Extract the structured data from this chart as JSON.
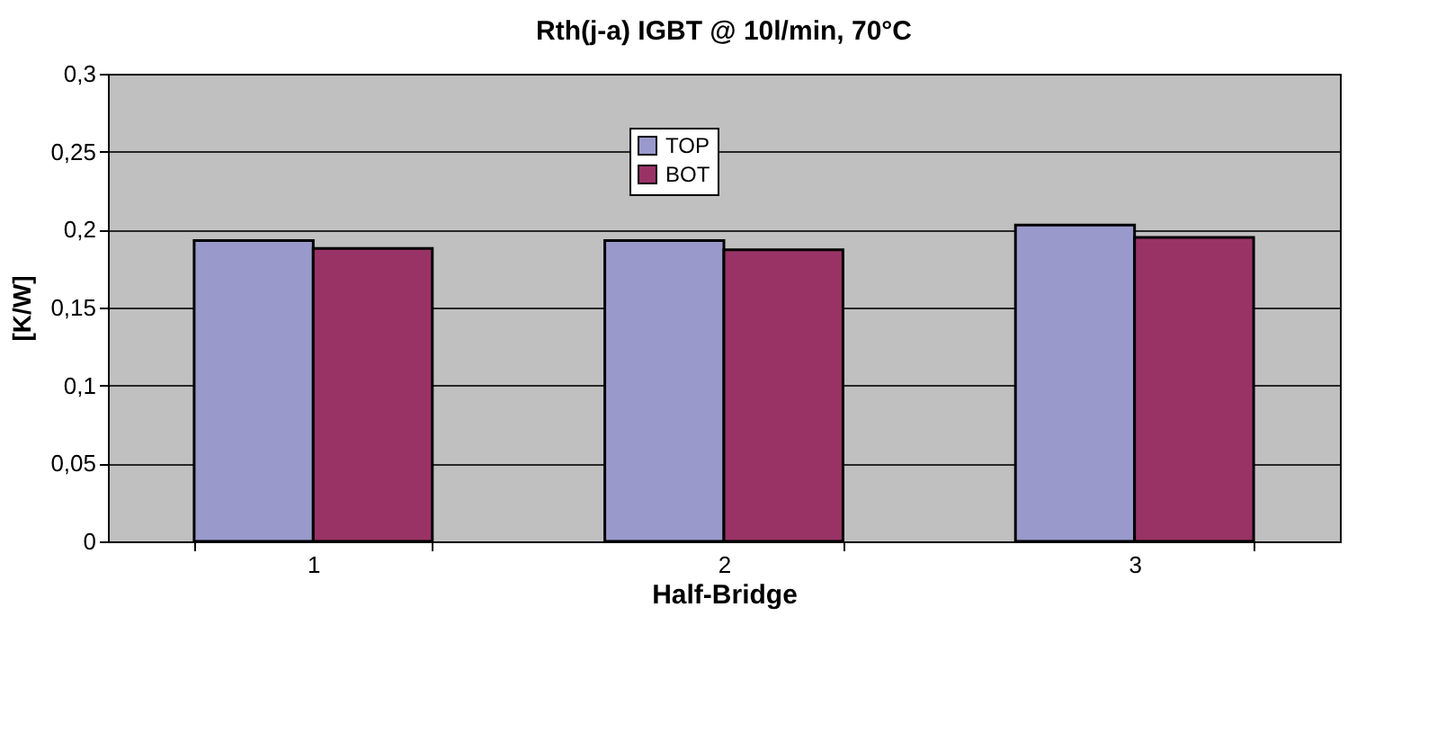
{
  "chart_data": {
    "type": "bar",
    "title": "Rth(j-a) IGBT @ 10l/min, 70°C",
    "xlabel": "Half-Bridge",
    "ylabel": "[K/W]",
    "categories": [
      "1",
      "2",
      "3"
    ],
    "series": [
      {
        "name": "TOP",
        "color": "#9999cc",
        "values": [
          0.193,
          0.193,
          0.203
        ]
      },
      {
        "name": "BOT",
        "color": "#993366",
        "values": [
          0.188,
          0.187,
          0.195
        ]
      }
    ],
    "ylim": [
      0,
      0.3
    ],
    "yticks": [
      {
        "value": 0,
        "label": "0"
      },
      {
        "value": 0.05,
        "label": "0,05"
      },
      {
        "value": 0.1,
        "label": "0,1"
      },
      {
        "value": 0.15,
        "label": "0,15"
      },
      {
        "value": 0.2,
        "label": "0,2"
      },
      {
        "value": 0.25,
        "label": "0,25"
      },
      {
        "value": 0.3,
        "label": "0,3"
      }
    ],
    "grid": "y",
    "legend": "top"
  }
}
